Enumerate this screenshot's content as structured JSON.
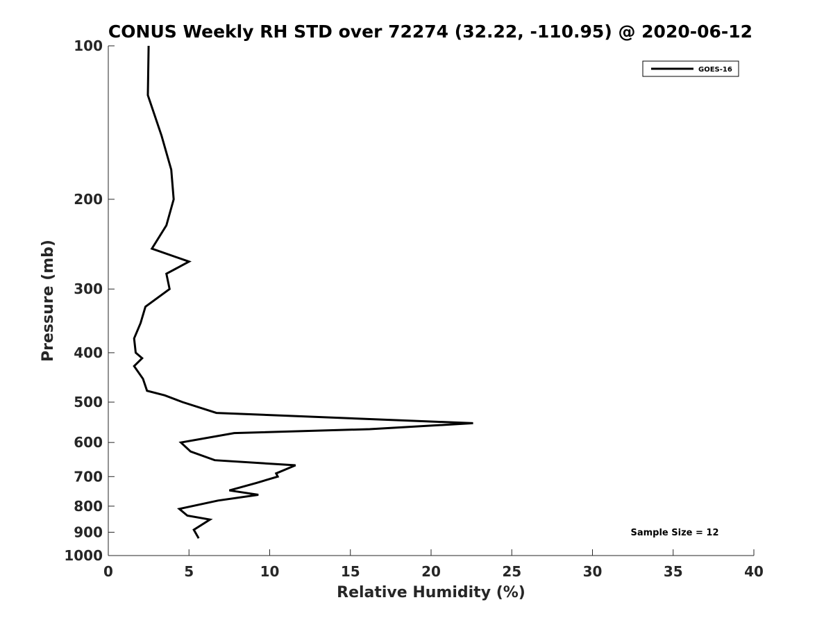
{
  "chart_data": {
    "type": "line",
    "title": "CONUS Weekly RH STD over 72274 (32.22, -110.95) @ 2020-06-12",
    "xlabel": "Relative Humidity (%)",
    "ylabel": "Pressure (mb)",
    "xlim": [
      0,
      40
    ],
    "ylim": [
      100,
      1000
    ],
    "yscale": "log",
    "yaxis_reversed": true,
    "x_ticks": [
      0,
      5,
      10,
      15,
      20,
      25,
      30,
      35,
      40
    ],
    "y_ticks": [
      100,
      200,
      300,
      400,
      500,
      600,
      700,
      800,
      900,
      1000
    ],
    "grid": false,
    "legend_position": "top-right",
    "annotation": "Sample Size = 12",
    "series": [
      {
        "name": "GOES-16",
        "color": "#000000",
        "points": [
          [
            2.5,
            100
          ],
          [
            2.45,
            125
          ],
          [
            3.3,
            150
          ],
          [
            3.9,
            175
          ],
          [
            4.05,
            200
          ],
          [
            3.6,
            225
          ],
          [
            2.7,
            250
          ],
          [
            5.0,
            265
          ],
          [
            3.6,
            280
          ],
          [
            3.8,
            300
          ],
          [
            2.3,
            325
          ],
          [
            2.0,
            350
          ],
          [
            1.6,
            375
          ],
          [
            1.7,
            400
          ],
          [
            2.1,
            410
          ],
          [
            1.6,
            425
          ],
          [
            2.15,
            450
          ],
          [
            2.4,
            475
          ],
          [
            3.5,
            485
          ],
          [
            4.6,
            500
          ],
          [
            6.7,
            525
          ],
          [
            22.6,
            550
          ],
          [
            16.2,
            565
          ],
          [
            7.8,
            575
          ],
          [
            4.5,
            600
          ],
          [
            5.1,
            625
          ],
          [
            6.6,
            650
          ],
          [
            11.6,
            665
          ],
          [
            10.4,
            690
          ],
          [
            10.5,
            700
          ],
          [
            9.2,
            720
          ],
          [
            7.5,
            745
          ],
          [
            9.3,
            760
          ],
          [
            6.8,
            780
          ],
          [
            4.4,
            810
          ],
          [
            4.9,
            835
          ],
          [
            6.3,
            850
          ],
          [
            5.3,
            890
          ],
          [
            5.6,
            925
          ]
        ]
      }
    ]
  }
}
